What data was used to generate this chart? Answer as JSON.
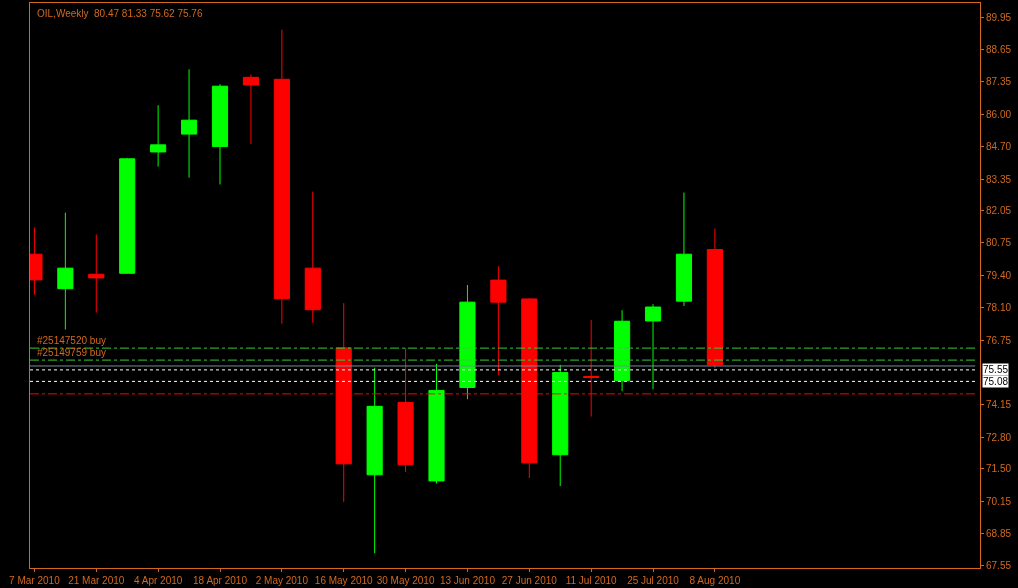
{
  "chart_data": {
    "type": "candlestick",
    "title": "OIL,Weekly  80.47 81.33 75.62 75.76",
    "x": [
      "2010-03-07",
      "2010-03-14",
      "2010-03-21",
      "2010-03-28",
      "2010-04-04",
      "2010-04-11",
      "2010-04-18",
      "2010-04-25",
      "2010-05-02",
      "2010-05-09",
      "2010-05-16",
      "2010-05-23",
      "2010-05-30",
      "2010-06-06",
      "2010-06-13",
      "2010-06-20",
      "2010-06-27",
      "2010-07-04",
      "2010-07-11",
      "2010-07-18",
      "2010-07-25",
      "2010-08-01",
      "2010-08-08"
    ],
    "ohlc": [
      [
        80.28,
        81.37,
        78.62,
        79.23
      ],
      [
        78.87,
        81.98,
        77.2,
        79.71
      ],
      [
        79.46,
        81.09,
        77.89,
        79.31
      ],
      [
        79.5,
        84.22,
        79.48,
        84.18
      ],
      [
        84.46,
        86.37,
        83.86,
        84.75
      ],
      [
        85.19,
        87.84,
        83.41,
        85.76
      ],
      [
        84.68,
        87.23,
        83.13,
        87.15
      ],
      [
        87.51,
        87.63,
        84.79,
        87.2
      ],
      [
        87.43,
        89.46,
        77.44,
        78.46
      ],
      [
        79.71,
        82.84,
        77.48,
        78.01
      ],
      [
        76.45,
        78.28,
        70.15,
        71.71
      ],
      [
        71.26,
        75.64,
        68.05,
        74.06
      ],
      [
        74.22,
        76.45,
        71.37,
        71.67
      ],
      [
        71.01,
        75.8,
        70.9,
        74.71
      ],
      [
        74.83,
        79.02,
        74.35,
        78.32
      ],
      [
        79.22,
        79.79,
        75.33,
        78.32
      ],
      [
        78.45,
        78.49,
        71.13,
        71.75
      ],
      [
        72.08,
        75.76,
        70.8,
        75.44
      ],
      [
        75.28,
        77.59,
        73.64,
        75.24
      ],
      [
        75.11,
        77.99,
        74.68,
        77.54
      ],
      [
        77.55,
        78.24,
        74.76,
        78.12
      ],
      [
        78.36,
        82.8,
        78.16,
        80.28
      ],
      [
        80.47,
        81.33,
        75.62,
        75.76
      ]
    ],
    "colors": [
      "#ff0000",
      "#00ff00",
      "#ff0000",
      "#00ff00",
      "#00ff00",
      "#00ff00",
      "#00ff00",
      "#ff0000",
      "#ff0000",
      "#ff0000",
      "#ff0000",
      "#00ff00",
      "#ff0000",
      "#00ff00",
      "#00ff00",
      "#ff0000",
      "#ff0000",
      "#00ff00",
      "#ff0000",
      "#00ff00",
      "#00ff00",
      "#00ff00",
      "#ff0000"
    ],
    "xlim": [
      "2010-03-06",
      "2010-10-07"
    ],
    "xticks": [
      {
        "value": "2010-03-07",
        "label": "7 Mar 2010"
      },
      {
        "value": "2010-03-21",
        "label": "21 Mar 2010"
      },
      {
        "value": "2010-04-04",
        "label": "4 Apr 2010"
      },
      {
        "value": "2010-04-18",
        "label": "18 Apr 2010"
      },
      {
        "value": "2010-05-02",
        "label": "2 May 2010"
      },
      {
        "value": "2010-05-16",
        "label": "16 May 2010"
      },
      {
        "value": "2010-05-30",
        "label": "30 May 2010"
      },
      {
        "value": "2010-06-13",
        "label": "13 Jun 2010"
      },
      {
        "value": "2010-06-27",
        "label": "27 Jun 2010"
      },
      {
        "value": "2010-07-11",
        "label": "11 Jul 2010"
      },
      {
        "value": "2010-07-25",
        "label": "25 Jul 2010"
      },
      {
        "value": "2010-08-08",
        "label": "8 Aug 2010"
      }
    ],
    "ylim": [
      67.45,
      90.55
    ],
    "yticks": [
      89.95,
      88.65,
      87.35,
      {
        "value": 86,
        "label": "86.00"
      },
      {
        "value": 84.7,
        "label": "84.70"
      },
      83.35,
      82.05,
      80.75,
      {
        "value": 79.4,
        "label": "79.40"
      },
      {
        "value": 78.1,
        "label": "78.10"
      },
      76.75,
      74.15,
      {
        "value": 72.8,
        "label": "72.80"
      },
      {
        "value": 71.5,
        "label": "71.50"
      },
      70.15,
      68.85,
      67.55
    ],
    "ref_lines": [
      {
        "axis": "y",
        "value": 76.44,
        "label": "#25147520 buy",
        "color": "#32cd32",
        "line_style": "dashed"
      },
      {
        "axis": "y",
        "value": 75.95,
        "label": "#25149759 buy",
        "color": "#32cd32",
        "line_style": "dashed"
      },
      {
        "axis": "y",
        "value": 75.71,
        "color": "#778899",
        "line_style": "solid"
      },
      {
        "axis": "y",
        "value": 75.55,
        "label": "75.55",
        "color": "#ffffff",
        "line_style": "dotted"
      },
      {
        "axis": "y",
        "value": 75.08,
        "label": "75.08",
        "color": "#ffffff",
        "line_style": "dotted"
      },
      {
        "axis": "y",
        "value": 74.57,
        "color": "#ff0000",
        "line_style": "dashed"
      }
    ],
    "grid": false,
    "legend": false
  }
}
